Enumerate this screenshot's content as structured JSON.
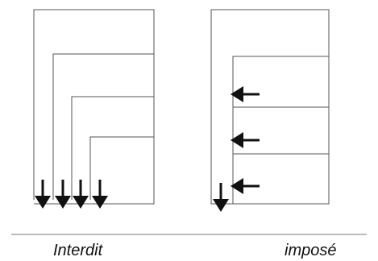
{
  "captions": {
    "left": "Interdit",
    "right": "imposé"
  },
  "colors": {
    "line": "#555555",
    "arrow": "#111111",
    "divider": "#777777"
  },
  "icons": {
    "flow_down": "arrow-down-icon",
    "flow_left": "arrow-left-icon"
  }
}
